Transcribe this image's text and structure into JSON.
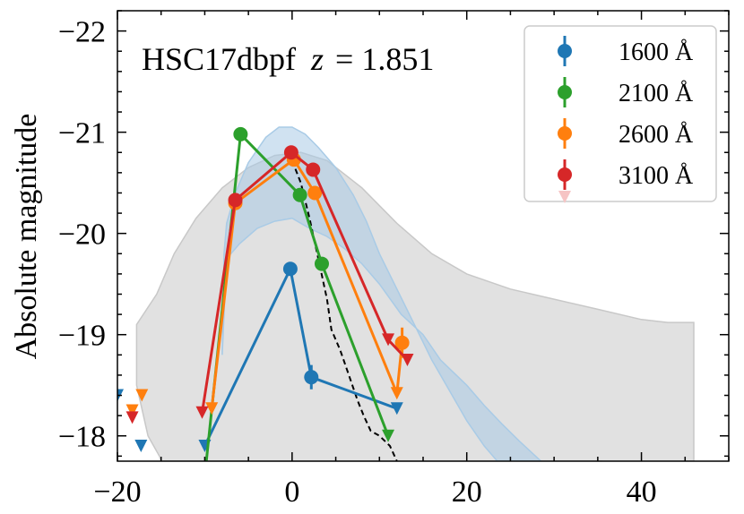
{
  "chart_data": {
    "type": "line",
    "title": "HSC17dbpf",
    "title_z_label": "z",
    "title_z_value": "= 1.851",
    "xlabel": "",
    "ylabel": "Absolute magnitude",
    "xlim": [
      -20,
      50
    ],
    "ylim": [
      -17.75,
      -22.2
    ],
    "y_inverted": true,
    "grid": false,
    "legend_position": "top-right",
    "x_ticks": [
      -20,
      0,
      20,
      40
    ],
    "x_tick_labels": [
      "−20",
      "0",
      "20",
      "40"
    ],
    "y_ticks": [
      -18,
      -19,
      -20,
      -21,
      -22
    ],
    "y_tick_labels": [
      "−18",
      "−19",
      "−20",
      "−21",
      "−22"
    ],
    "series": [
      {
        "name": "1600 Å",
        "color": "#1f77b4",
        "points": [
          {
            "x": -10,
            "y": -17.9,
            "upper_limit": true
          },
          {
            "x": -0.2,
            "y": -19.65,
            "err": 0
          },
          {
            "x": 2.2,
            "y": -18.58,
            "err": 0.12
          },
          {
            "x": 12,
            "y": -18.27,
            "upper_limit": true
          }
        ],
        "extra_limits": [
          {
            "x": -20,
            "y": -18.4
          },
          {
            "x": -17.3,
            "y": -17.9
          }
        ]
      },
      {
        "name": "2100 Å",
        "color": "#2ca02c",
        "points": [
          {
            "x": -10,
            "y": -17.6
          },
          {
            "x": -5.9,
            "y": -20.98,
            "err": 0
          },
          {
            "x": 0.9,
            "y": -20.38,
            "err": 0
          },
          {
            "x": 3.4,
            "y": -19.7,
            "err": 0
          },
          {
            "x": 11,
            "y": -18.0,
            "upper_limit": true
          }
        ],
        "extra_limits": []
      },
      {
        "name": "2600 Å",
        "color": "#ff7f0e",
        "points": [
          {
            "x": -9.2,
            "y": -18.27,
            "upper_limit": true
          },
          {
            "x": -6.5,
            "y": -20.3,
            "err": 0
          },
          {
            "x": 0.2,
            "y": -20.73,
            "err": 0
          },
          {
            "x": 2.6,
            "y": -20.4,
            "err": 0
          },
          {
            "x": 12,
            "y": -18.42,
            "upper_limit": true
          },
          {
            "x": 12.6,
            "y": -18.92,
            "err": 0.15
          }
        ],
        "extra_limits": [
          {
            "x": -18.3,
            "y": -18.25
          },
          {
            "x": -17.2,
            "y": -18.4
          }
        ]
      },
      {
        "name": "3100 Å",
        "color": "#d62728",
        "points": [
          {
            "x": -10.3,
            "y": -18.23,
            "upper_limit": true
          },
          {
            "x": -6.5,
            "y": -20.33,
            "err": 0
          },
          {
            "x": -0.1,
            "y": -20.8,
            "err": 0
          },
          {
            "x": 2.4,
            "y": -20.63,
            "err": 0
          },
          {
            "x": 11,
            "y": -18.95,
            "upper_limit": true
          },
          {
            "x": 13.2,
            "y": -18.75,
            "upper_limit": true
          }
        ],
        "extra_limits": [
          {
            "x": -18.3,
            "y": -18.18
          }
        ]
      }
    ],
    "dashed_model": {
      "color": "#000000",
      "points": [
        [
          0,
          -20.72
        ],
        [
          1.0,
          -20.5
        ],
        [
          2.0,
          -20.15
        ],
        [
          3.0,
          -19.75
        ],
        [
          4.0,
          -19.35
        ],
        [
          4.5,
          -19.05
        ],
        [
          5.5,
          -18.85
        ],
        [
          6.5,
          -18.6
        ],
        [
          7.5,
          -18.35
        ],
        [
          8.2,
          -18.2
        ],
        [
          9.0,
          -18.05
        ],
        [
          10.0,
          -18.0
        ],
        [
          11.2,
          -17.9
        ],
        [
          12.0,
          -17.75
        ]
      ]
    },
    "gray_band": {
      "color": "#c8c8c8",
      "upper": [
        [
          -17.8,
          -19.1
        ],
        [
          -15.5,
          -19.4
        ],
        [
          -13.5,
          -19.8
        ],
        [
          -11,
          -20.15
        ],
        [
          -8,
          -20.45
        ],
        [
          -5,
          -20.65
        ],
        [
          -2,
          -20.77
        ],
        [
          1,
          -20.8
        ],
        [
          4,
          -20.72
        ],
        [
          8,
          -20.45
        ],
        [
          12,
          -20.1
        ],
        [
          16,
          -19.8
        ],
        [
          20,
          -19.6
        ],
        [
          25,
          -19.45
        ],
        [
          30,
          -19.35
        ],
        [
          35,
          -19.25
        ],
        [
          40,
          -19.15
        ],
        [
          43,
          -19.12
        ],
        [
          46,
          -19.12
        ]
      ],
      "lower": [
        [
          46,
          -17.6
        ],
        [
          40,
          -17.6
        ],
        [
          36,
          -17.6
        ],
        [
          35.5,
          -17.75
        ],
        [
          30,
          -17.75
        ],
        [
          20,
          -17.75
        ],
        [
          10,
          -17.75
        ],
        [
          0,
          -17.75
        ],
        [
          -10,
          -17.75
        ],
        [
          -15,
          -17.75
        ],
        [
          -15.2,
          -17.8
        ],
        [
          -16.5,
          -18.0
        ],
        [
          -17.8,
          -18.5
        ]
      ]
    },
    "blue_band": {
      "color": "#a9cbe6",
      "upper": [
        [
          -7.8,
          -19.8
        ],
        [
          -7.5,
          -20.1
        ],
        [
          -6.5,
          -20.4
        ],
        [
          -5,
          -20.7
        ],
        [
          -3,
          -20.95
        ],
        [
          -1.5,
          -21.05
        ],
        [
          0,
          -21.05
        ],
        [
          1.5,
          -20.98
        ],
        [
          3,
          -20.85
        ],
        [
          5,
          -20.65
        ],
        [
          7,
          -20.38
        ],
        [
          8.5,
          -20.12
        ],
        [
          10,
          -19.8
        ],
        [
          12,
          -19.45
        ],
        [
          14,
          -19.1
        ],
        [
          16,
          -18.75
        ],
        [
          18,
          -18.45
        ],
        [
          20,
          -18.15
        ],
        [
          22,
          -17.9
        ],
        [
          23.5,
          -17.75
        ]
      ],
      "lower": [
        [
          28.5,
          -17.75
        ],
        [
          26,
          -17.95
        ],
        [
          24,
          -18.12
        ],
        [
          22,
          -18.3
        ],
        [
          20,
          -18.5
        ],
        [
          17,
          -18.75
        ],
        [
          15,
          -19.0
        ],
        [
          12.5,
          -19.2
        ],
        [
          10,
          -19.5
        ],
        [
          8,
          -19.7
        ],
        [
          6,
          -19.85
        ],
        [
          4,
          -19.97
        ],
        [
          2,
          -20.05
        ],
        [
          0,
          -20.15
        ],
        [
          -2,
          -20.12
        ],
        [
          -4,
          -20.05
        ],
        [
          -6,
          -19.9
        ],
        [
          -7.5,
          -19.75
        ],
        [
          -8,
          -18.8
        ]
      ]
    }
  }
}
